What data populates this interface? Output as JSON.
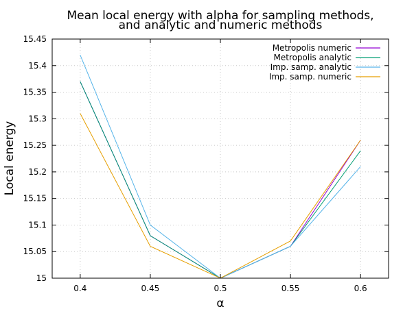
{
  "chart_data": {
    "type": "line",
    "title_lines": [
      "Mean local energy with alpha for sampling methods,",
      "and analytic and numeric methods"
    ],
    "xlabel": "α",
    "ylabel": "Local energy",
    "xlim": [
      0.38,
      0.62
    ],
    "ylim": [
      15,
      15.45
    ],
    "x_ticks": [
      "0.4",
      "0.45",
      "0.5",
      "0.55",
      "0.6"
    ],
    "y_ticks": [
      "15",
      "15.05",
      "15.1",
      "15.15",
      "15.2",
      "15.25",
      "15.3",
      "15.35",
      "15.4",
      "15.45"
    ],
    "grid": true,
    "legend_position": "top-right",
    "x": [
      0.4,
      0.45,
      0.5,
      0.55,
      0.6
    ],
    "series": [
      {
        "name": "Metropolis numeric",
        "color": "#9400d3",
        "values": [
          15.37,
          15.08,
          15.0,
          15.06,
          15.26
        ]
      },
      {
        "name": "Metropolis analytic",
        "color": "#009e73",
        "values": [
          15.37,
          15.08,
          15.0,
          15.06,
          15.24
        ]
      },
      {
        "name": "Imp. samp. analytic",
        "color": "#56b4e9",
        "values": [
          15.42,
          15.1,
          15.0,
          15.06,
          15.21
        ]
      },
      {
        "name": "Imp. samp. numeric",
        "color": "#e69f00",
        "values": [
          15.31,
          15.06,
          15.0,
          15.07,
          15.26
        ]
      }
    ]
  }
}
